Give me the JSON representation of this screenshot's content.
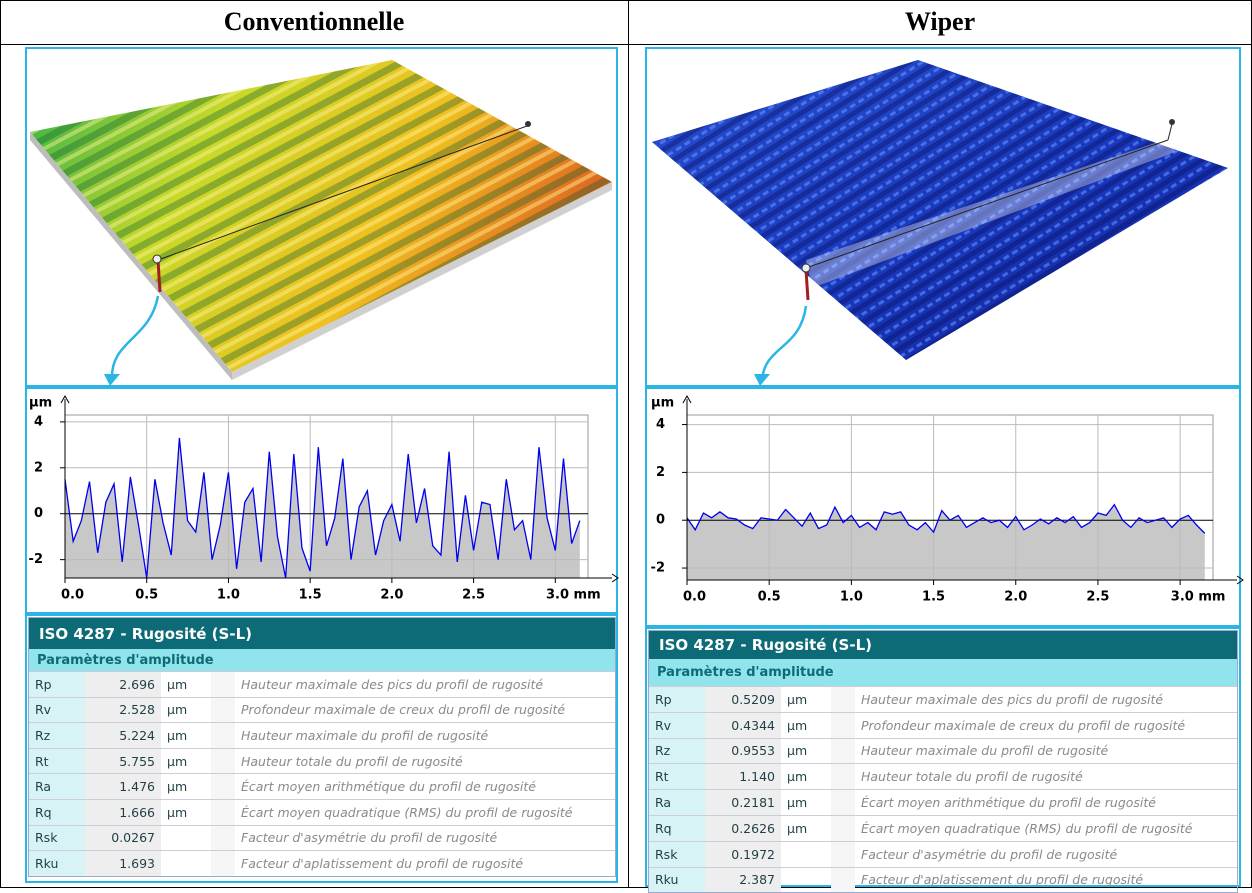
{
  "columns": [
    {
      "title": "Conventionnelle"
    },
    {
      "title": "Wiper"
    }
  ],
  "chart_data": [
    {
      "type": "line",
      "y_label": "µm",
      "color": "#0000ee",
      "fill": "#c8c8c8",
      "grid": true,
      "x": [
        0,
        0.05,
        0.1,
        0.15,
        0.2,
        0.25,
        0.3,
        0.35,
        0.4,
        0.45,
        0.5,
        0.55,
        0.6,
        0.65,
        0.7,
        0.75,
        0.8,
        0.85,
        0.9,
        0.95,
        1,
        1.05,
        1.1,
        1.15,
        1.2,
        1.25,
        1.3,
        1.35,
        1.4,
        1.45,
        1.5,
        1.55,
        1.6,
        1.65,
        1.7,
        1.75,
        1.8,
        1.85,
        1.9,
        1.95,
        2,
        2.05,
        2.1,
        2.15,
        2.2,
        2.25,
        2.3,
        2.35,
        2.4,
        2.45,
        2.5,
        2.55,
        2.6,
        2.65,
        2.7,
        2.75,
        2.8,
        2.85,
        2.9,
        2.95,
        3,
        3.05,
        3.1,
        3.15
      ],
      "values": [
        1.5,
        -1.2,
        -0.3,
        1.4,
        -1.7,
        0.5,
        1.3,
        -2.1,
        1.6,
        -0.5,
        -2.8,
        1.5,
        -0.4,
        -1.8,
        3.3,
        -0.3,
        -0.8,
        1.8,
        -2.0,
        -0.5,
        1.8,
        -2.4,
        0.5,
        1.1,
        -2.1,
        2.7,
        -1.0,
        -2.8,
        2.6,
        -1.5,
        -2.5,
        2.9,
        -1.4,
        -0.2,
        2.4,
        -2.0,
        0.3,
        1.0,
        -1.8,
        -0.3,
        0.4,
        -1.2,
        2.6,
        -0.4,
        1.1,
        -1.4,
        -1.8,
        2.7,
        -2.1,
        0.8,
        -1.6,
        0.5,
        0.4,
        -2.0,
        1.5,
        -0.7,
        -0.3,
        -2.0,
        2.9,
        -0.2,
        -1.6,
        2.4,
        -1.3,
        -0.3
      ],
      "xlim": [
        0,
        3.2
      ],
      "ylim": [
        -2.8,
        4.3
      ],
      "xticks": [
        {
          "value": 0,
          "label": "0.0"
        },
        {
          "value": 0.5,
          "label": "0.5"
        },
        {
          "value": 1,
          "label": "1.0"
        },
        {
          "value": 1.5,
          "label": "1.5"
        },
        {
          "value": 2,
          "label": "2.0"
        },
        {
          "value": 2.5,
          "label": "2.5"
        },
        {
          "value": 3,
          "label": "3.0 mm"
        }
      ],
      "yticks": [
        -2,
        0,
        2,
        4
      ]
    },
    {
      "type": "line",
      "y_label": "µm",
      "color": "#0000ee",
      "fill": "#c8c8c8",
      "grid": true,
      "x": [
        0,
        0.05,
        0.1,
        0.15,
        0.2,
        0.25,
        0.3,
        0.35,
        0.4,
        0.45,
        0.5,
        0.55,
        0.6,
        0.65,
        0.7,
        0.75,
        0.8,
        0.85,
        0.9,
        0.95,
        1,
        1.05,
        1.1,
        1.15,
        1.2,
        1.25,
        1.3,
        1.35,
        1.4,
        1.45,
        1.5,
        1.55,
        1.6,
        1.65,
        1.7,
        1.75,
        1.8,
        1.85,
        1.9,
        1.95,
        2,
        2.05,
        2.1,
        2.15,
        2.2,
        2.25,
        2.3,
        2.35,
        2.4,
        2.45,
        2.5,
        2.55,
        2.6,
        2.65,
        2.7,
        2.75,
        2.8,
        2.85,
        2.9,
        2.95,
        3,
        3.05,
        3.1,
        3.15
      ],
      "values": [
        0.1,
        -0.4,
        0.3,
        0.1,
        0.35,
        0.1,
        0.05,
        -0.2,
        -0.35,
        0.1,
        0.05,
        0.0,
        0.45,
        0.1,
        -0.25,
        0.3,
        -0.35,
        -0.2,
        0.55,
        -0.1,
        0.2,
        -0.3,
        -0.1,
        -0.4,
        0.35,
        0.25,
        0.35,
        -0.2,
        -0.4,
        -0.1,
        -0.5,
        0.4,
        0.0,
        0.2,
        -0.3,
        -0.1,
        0.1,
        -0.1,
        0.0,
        -0.3,
        0.15,
        -0.4,
        -0.2,
        0.05,
        -0.15,
        0.1,
        -0.1,
        0.15,
        -0.3,
        -0.1,
        0.3,
        0.2,
        0.65,
        0.0,
        -0.3,
        0.1,
        -0.1,
        0.0,
        0.1,
        -0.3,
        0.05,
        0.2,
        -0.2,
        -0.55
      ],
      "xlim": [
        0,
        3.2
      ],
      "ylim": [
        -2.5,
        4.4
      ],
      "xticks": [
        {
          "value": 0,
          "label": "0.0"
        },
        {
          "value": 0.5,
          "label": "0.5"
        },
        {
          "value": 1,
          "label": "1.0"
        },
        {
          "value": 1.5,
          "label": "1.5"
        },
        {
          "value": 2,
          "label": "2.0"
        },
        {
          "value": 2.5,
          "label": "2.5"
        },
        {
          "value": 3,
          "label": "3.0 mm"
        }
      ],
      "yticks": [
        -2,
        0,
        2,
        4
      ]
    }
  ],
  "tables": [
    {
      "title": "ISO 4287 - Rugosité (S-L)",
      "section": "Paramètres d'amplitude",
      "rows": [
        {
          "param": "Rp",
          "value": "2.696",
          "unit": "µm",
          "description": "Hauteur maximale des pics du profil de rugosité"
        },
        {
          "param": "Rv",
          "value": "2.528",
          "unit": "µm",
          "description": "Profondeur maximale de creux du profil de rugosité"
        },
        {
          "param": "Rz",
          "value": "5.224",
          "unit": "µm",
          "description": "Hauteur maximale du profil de rugosité"
        },
        {
          "param": "Rt",
          "value": "5.755",
          "unit": "µm",
          "description": "Hauteur totale du profil de rugosité"
        },
        {
          "param": "Ra",
          "value": "1.476",
          "unit": "µm",
          "description": "Écart moyen arithmétique du profil de rugosité"
        },
        {
          "param": "Rq",
          "value": "1.666",
          "unit": "µm",
          "description": "Écart moyen quadratique (RMS) du profil de rugosité"
        },
        {
          "param": "Rsk",
          "value": "0.0267",
          "description": "Facteur d'asymétrie du profil de rugosité"
        },
        {
          "param": "Rku",
          "value": "1.693",
          "description": "Facteur d'aplatissement du profil de rugosité"
        }
      ]
    },
    {
      "title": "ISO 4287 - Rugosité (S-L)",
      "section": "Paramètres d'amplitude",
      "rows": [
        {
          "param": "Rp",
          "value": "0.5209",
          "unit": "µm",
          "description": "Hauteur maximale des pics du profil de rugosité"
        },
        {
          "param": "Rv",
          "value": "0.4344",
          "unit": "µm",
          "description": "Profondeur maximale de creux du profil de rugosité"
        },
        {
          "param": "Rz",
          "value": "0.9553",
          "unit": "µm",
          "description": "Hauteur maximale du profil de rugosité"
        },
        {
          "param": "Rt",
          "value": "1.140",
          "unit": "µm",
          "description": "Hauteur totale du profil de rugosité"
        },
        {
          "param": "Ra",
          "value": "0.2181",
          "unit": "µm",
          "description": "Écart moyen arithmétique du profil de rugosité"
        },
        {
          "param": "Rq",
          "value": "0.2626",
          "unit": "µm",
          "description": "Écart moyen quadratique (RMS) du profil de rugosité"
        },
        {
          "param": "Rsk",
          "value": "0.1972",
          "description": "Facteur d'asymétrie du profil de rugosité"
        },
        {
          "param": "Rku",
          "value": "2.387",
          "description": "Facteur d'aplatissement du profil de rugosité"
        }
      ]
    }
  ]
}
